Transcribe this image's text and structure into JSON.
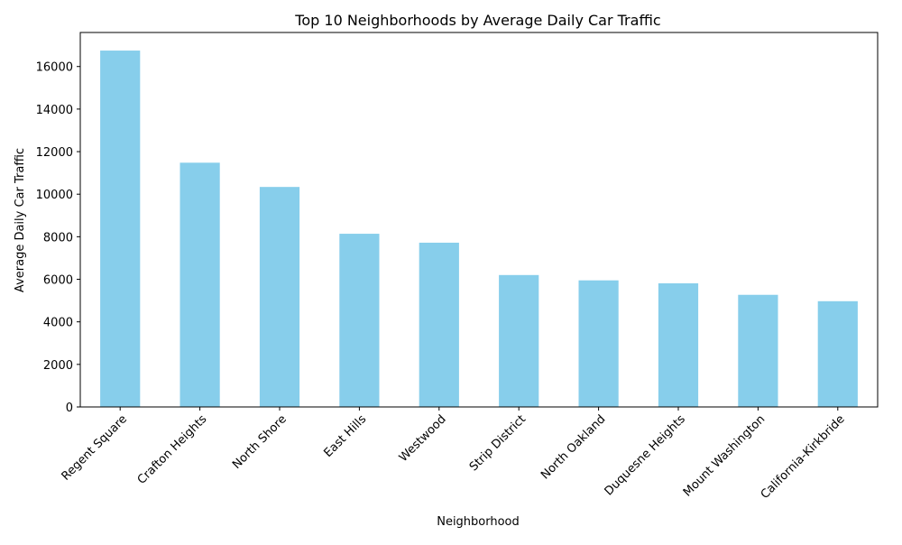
{
  "chart_data": {
    "type": "bar",
    "title": "Top 10 Neighborhoods by Average Daily Car Traffic",
    "xlabel": "Neighborhood",
    "ylabel": "Average Daily Car Traffic",
    "categories": [
      "Regent Square",
      "Crafton Heights",
      "North Shore",
      "East Hills",
      "Westwood",
      "Strip District",
      "North Oakland",
      "Duquesne Heights",
      "Mount Washington",
      "California-Kirkbride"
    ],
    "values": [
      16750,
      11480,
      10340,
      8140,
      7720,
      6200,
      5950,
      5810,
      5270,
      4970
    ],
    "ylim": [
      0,
      17600
    ],
    "yticks": [
      0,
      2000,
      4000,
      6000,
      8000,
      10000,
      12000,
      14000,
      16000
    ],
    "bar_color": "#87CEEB",
    "grid": false,
    "legend": "none",
    "xtick_rotation": 45
  }
}
